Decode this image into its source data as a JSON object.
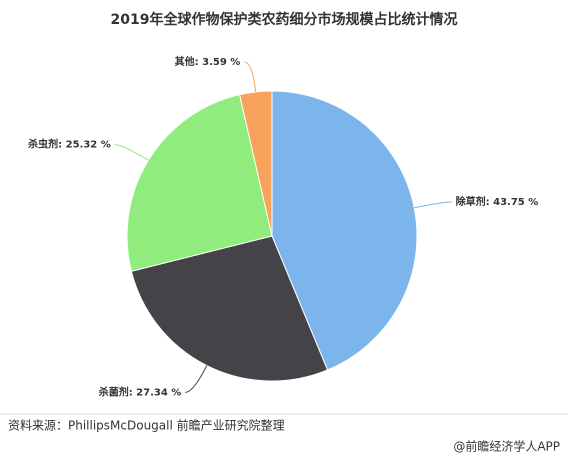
{
  "chart_data": {
    "type": "pie",
    "title": "2019年全球作物保护类农药细分市场规模占比统计情况",
    "values": [
      43.75,
      27.34,
      25.32,
      3.59
    ],
    "value_labels": [
      "除草剂: 43.75 %",
      "杀菌剂: 27.34 %",
      "杀虫剂: 25.32 %",
      "其他: 3.59 %"
    ],
    "colors": [
      "#7cb5ec",
      "#434348",
      "#90ed7d",
      "#f7a35c"
    ],
    "source": "资料来源：PhillipsMcDougall 前瞻产业研究院整理",
    "credit": "@前瞻经济学人APP"
  }
}
